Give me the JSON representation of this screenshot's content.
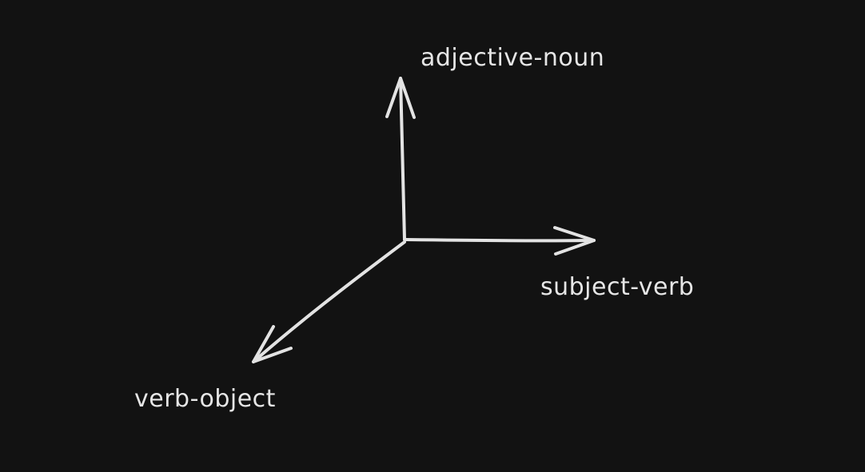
{
  "diagram": {
    "axes": [
      {
        "id": "up",
        "label": "adjective-noun"
      },
      {
        "id": "right",
        "label": "subject-verb"
      },
      {
        "id": "down-left",
        "label": "verb-object"
      }
    ],
    "colors": {
      "background": "#121212",
      "stroke": "#e3e3e3",
      "text": "#e6e6e6"
    }
  }
}
